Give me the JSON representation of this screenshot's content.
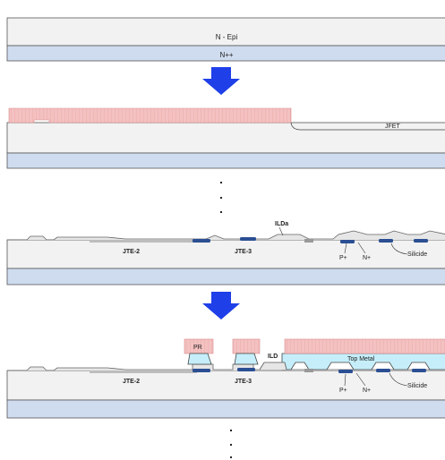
{
  "panel1": {
    "epi_label": "N - Epi",
    "substrate_label": "N++"
  },
  "panel2": {
    "jfet_label": "JFET"
  },
  "panel3": {
    "jte2_label": "JTE-2",
    "jte3_label": "JTE-3",
    "ilda_label": "ILDa",
    "pplus_label": "P+",
    "nplus_label": "N+",
    "silicide_label": "Silicide"
  },
  "panel4": {
    "pr_label": "PR",
    "ild_label": "ILD",
    "top_metal_label": "Top Metal",
    "jte2_label": "JTE-2",
    "jte3_label": "JTE-3",
    "pplus_label": "P+",
    "nplus_label": "N+",
    "silicide_label": "Silicide"
  },
  "colors": {
    "epi": "#f2f2f2",
    "substrate": "#cfdcef",
    "photoresist": "#f4c1c1",
    "arrow": "#1f3fe8",
    "oxide": "#e6e6e6",
    "implant": "#2b4f93",
    "metal": "#c5eefa",
    "ild": "#6b6b6b"
  }
}
